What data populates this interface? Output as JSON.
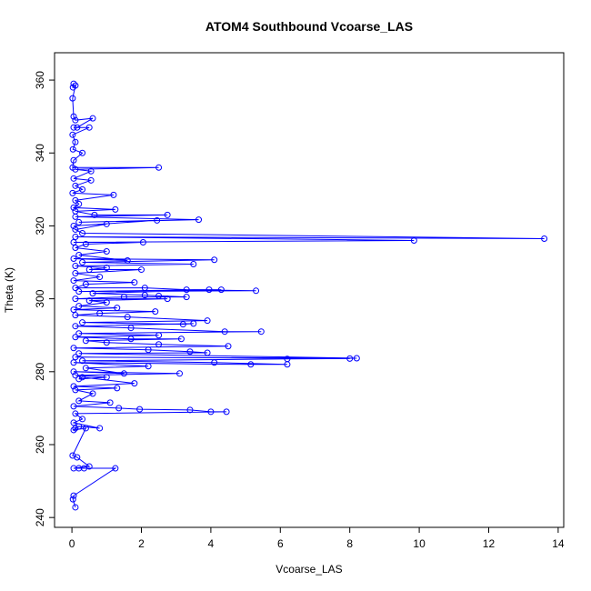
{
  "chart_data": {
    "type": "line",
    "marker": "open-circle",
    "title": "ATOM4 Southbound Vcoarse_LAS",
    "x_label": "Vcoarse_LAS",
    "y_label": "Theta (K)",
    "xlim": [
      -0.5,
      14.16
    ],
    "ylim": [
      237.3,
      367.5
    ],
    "xticks": [
      0,
      2,
      4,
      6,
      8,
      10,
      12,
      14
    ],
    "yticks": [
      240,
      260,
      280,
      300,
      320,
      340,
      360
    ],
    "series": [
      {
        "color": "#0000ff",
        "x": [
          0.05,
          0.03,
          0.1,
          0.02,
          0.05,
          0.1,
          0.6,
          0.15,
          0.05,
          0.5,
          0.02,
          0.1,
          0.03,
          0.3,
          0.05,
          0.02,
          2.5,
          0.1,
          0.55,
          0.05,
          0.55,
          0.1,
          0.3,
          0.02,
          1.2,
          0.1,
          0.2,
          0.05,
          1.25,
          0.1,
          0.65,
          2.75,
          0.1,
          3.65,
          0.2,
          2.45,
          0.05,
          1.0,
          0.1,
          0.3,
          13.6,
          0.1,
          9.85,
          0.05,
          2.05,
          0.4,
          0.1,
          1.0,
          0.2,
          1.6,
          0.05,
          4.1,
          0.3,
          3.5,
          0.1,
          1.0,
          0.5,
          2.0,
          0.1,
          0.8,
          0.05,
          1.8,
          0.4,
          0.1,
          2.1,
          3.3,
          5.3,
          0.2,
          3.95,
          4.3,
          0.6,
          2.1,
          2.5,
          3.3,
          1.5,
          0.1,
          2.75,
          0.5,
          1.0,
          0.2,
          1.3,
          0.05,
          2.4,
          0.8,
          0.1,
          1.6,
          3.9,
          0.3,
          3.2,
          3.5,
          0.1,
          1.7,
          4.4,
          5.45,
          0.2,
          2.5,
          0.1,
          1.7,
          3.15,
          0.4,
          1.0,
          2.5,
          4.5,
          0.05,
          2.2,
          3.4,
          3.9,
          0.2,
          8.2,
          0.1,
          8.0,
          6.2,
          0.3,
          4.1,
          6.2,
          5.15,
          0.05,
          2.2,
          0.4,
          1.5,
          0.05,
          3.1,
          0.1,
          1.0,
          0.2,
          0.3,
          1.8,
          0.05,
          1.3,
          0.1,
          0.6,
          0.2,
          1.1,
          0.05,
          1.35,
          1.95,
          3.4,
          4.0,
          4.45,
          0.1,
          0.3,
          0.05,
          0.8,
          0.2,
          0.1,
          0.05,
          0.4,
          0.02,
          0.15,
          0.5,
          0.05,
          0.2,
          0.35,
          1.25,
          0.05,
          0.03,
          0.1
        ],
        "values": [
          359,
          358,
          358.5,
          355,
          350,
          349,
          349.5,
          347,
          347,
          347,
          345,
          343,
          341,
          340,
          338,
          336,
          336,
          335.5,
          335,
          333,
          332.5,
          331,
          330,
          329,
          328.5,
          327,
          326,
          325,
          324.5,
          324,
          323,
          323,
          322.5,
          321.7,
          321,
          321.5,
          320,
          320.5,
          319,
          318,
          316.5,
          317,
          316,
          315.5,
          315.5,
          315,
          314,
          313,
          312,
          310.5,
          311,
          310.7,
          310,
          309.5,
          309,
          308.5,
          308,
          308,
          307,
          306,
          305,
          304.5,
          304,
          303,
          303,
          302.5,
          302.2,
          302,
          302.5,
          302.5,
          301.5,
          301,
          300.8,
          300.5,
          300.5,
          300,
          300,
          299.5,
          299,
          298,
          297.5,
          297,
          296.5,
          296,
          295.5,
          295,
          294,
          293.5,
          293,
          293.2,
          292.5,
          292,
          291,
          291,
          290.5,
          290,
          289.5,
          289,
          289,
          288.5,
          288,
          287.5,
          287,
          286.5,
          286,
          285.5,
          285.2,
          285,
          283.7,
          284,
          283.6,
          283.5,
          283,
          282.5,
          282,
          282,
          282.5,
          281.5,
          281,
          279.5,
          280,
          279.5,
          279,
          278.5,
          278,
          278.5,
          276.8,
          276,
          275.5,
          275,
          274,
          272,
          271.5,
          270.5,
          270,
          269.7,
          269.5,
          269,
          269,
          268.5,
          267,
          266,
          264.5,
          265,
          264.5,
          264,
          264.5,
          257,
          256.5,
          254,
          253.5,
          253.5,
          253.5,
          253.5,
          246,
          245,
          242.8
        ]
      }
    ]
  }
}
